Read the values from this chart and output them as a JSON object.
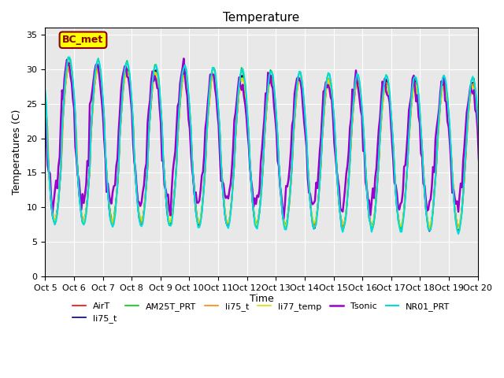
{
  "title": "Temperature",
  "ylabel": "Temperatures (C)",
  "xlabel": "Time",
  "ylim": [
    0,
    36
  ],
  "xlim": [
    0,
    360
  ],
  "background_color": "#e8e8e8",
  "grid_color": "white",
  "annotation_text": "BC_met",
  "annotation_bg": "#ffff00",
  "annotation_border": "#8b0000",
  "xtick_labels": [
    "Oct 5",
    "Oct 6",
    "Oct 7",
    "Oct 8",
    "Oct 9",
    "Oct 10",
    "Oct 11",
    "Oct 12",
    "Oct 13",
    "Oct 14",
    "Oct 15",
    "Oct 16",
    "Oct 17",
    "Oct 18",
    "Oct 19",
    "Oct 20"
  ],
  "xtick_positions": [
    0,
    24,
    48,
    72,
    96,
    120,
    144,
    168,
    192,
    216,
    240,
    264,
    288,
    312,
    336,
    360
  ],
  "series": [
    {
      "label": "AirT",
      "color": "#ff0000",
      "lw": 1.2
    },
    {
      "label": "li75_t",
      "color": "#000080",
      "lw": 1.2
    },
    {
      "label": "AM25T_PRT",
      "color": "#00cc00",
      "lw": 1.2
    },
    {
      "label": "li75_t",
      "color": "#ff8800",
      "lw": 1.2
    },
    {
      "label": "li77_temp",
      "color": "#dddd00",
      "lw": 1.2
    },
    {
      "label": "Tsonic",
      "color": "#9900cc",
      "lw": 1.8
    },
    {
      "label": "NR01_PRT",
      "color": "#00dddd",
      "lw": 1.5
    }
  ]
}
